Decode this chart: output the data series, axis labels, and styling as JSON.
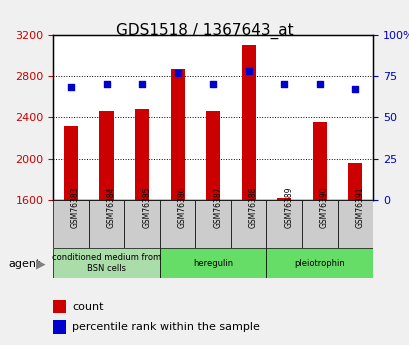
{
  "title": "GDS1518 / 1367643_at",
  "samples": [
    "GSM76383",
    "GSM76384",
    "GSM76385",
    "GSM76386",
    "GSM76387",
    "GSM76388",
    "GSM76389",
    "GSM76390",
    "GSM76391"
  ],
  "counts": [
    2320,
    2460,
    2480,
    2870,
    2460,
    3100,
    1620,
    2350,
    1960
  ],
  "percentile_ranks": [
    68,
    70,
    70,
    77,
    70,
    78,
    70,
    70,
    67
  ],
  "groups": [
    {
      "label": "conditioned medium from\nBSN cells",
      "start": 0,
      "end": 3,
      "color": "#ccffcc"
    },
    {
      "label": "heregulin",
      "start": 3,
      "end": 6,
      "color": "#66ff66"
    },
    {
      "label": "pleiotrophin",
      "start": 6,
      "end": 9,
      "color": "#66ff66"
    }
  ],
  "ylim_left": [
    1600,
    3200
  ],
  "ylim_right": [
    0,
    100
  ],
  "left_ticks": [
    1600,
    2000,
    2400,
    2800,
    3200
  ],
  "right_ticks": [
    0,
    25,
    50,
    75,
    100
  ],
  "bar_color": "#cc0000",
  "dot_color": "#0000cc",
  "bar_width": 0.4,
  "background_color": "#dddddd",
  "plot_bg_color": "#ffffff",
  "legend_count_color": "#cc0000",
  "legend_pct_color": "#0000cc"
}
